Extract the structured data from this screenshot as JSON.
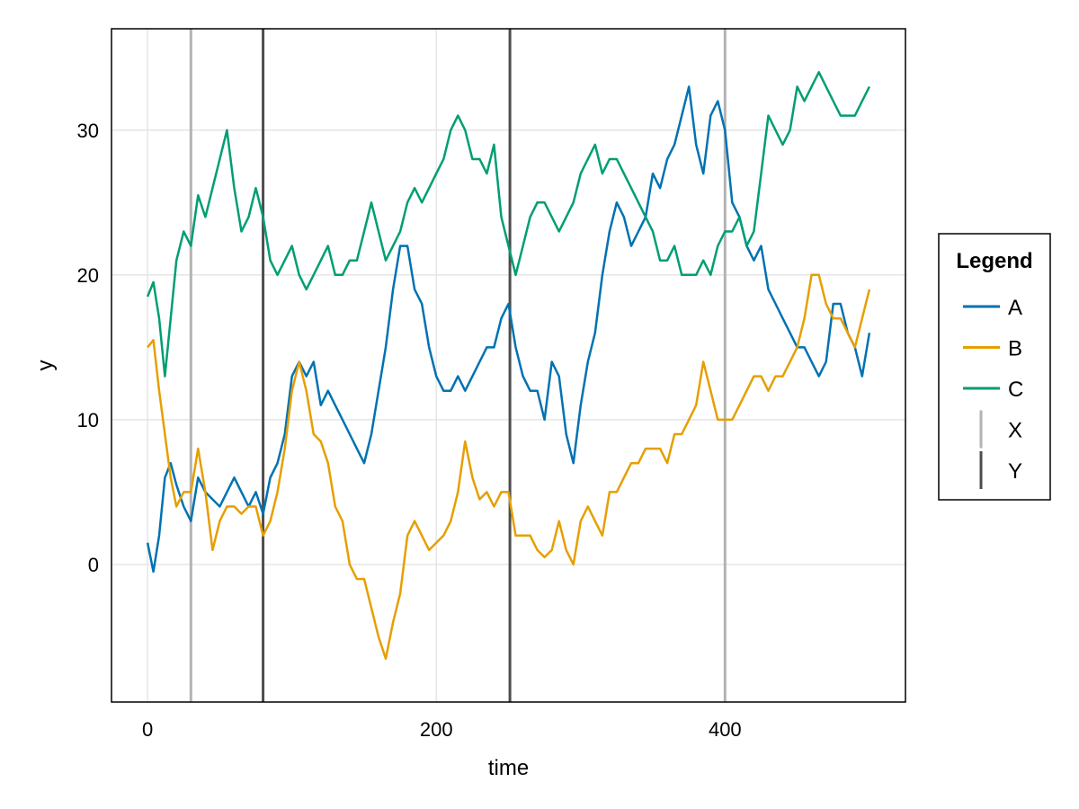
{
  "chart_data": {
    "type": "line",
    "title": "",
    "xlabel": "time",
    "ylabel": "y",
    "xlim": [
      -25,
      525
    ],
    "ylim": [
      -9.5,
      37
    ],
    "xticks": [
      0,
      200,
      400
    ],
    "yticks": [
      0,
      10,
      20,
      30
    ],
    "grid": true,
    "legend": {
      "title": "Legend",
      "placement": "right-outside",
      "entries": [
        {
          "label": "A",
          "kind": "line",
          "color": "#0072b2"
        },
        {
          "label": "B",
          "kind": "line",
          "color": "#e69f00"
        },
        {
          "label": "C",
          "kind": "line",
          "color": "#009e73"
        },
        {
          "label": "X",
          "kind": "vline",
          "color": "#b3b3b3"
        },
        {
          "label": "Y",
          "kind": "vline",
          "color": "#4d4d4d"
        }
      ]
    },
    "vlines": [
      {
        "name": "X",
        "x": [
          30,
          400
        ],
        "color": "#b3b3b3"
      },
      {
        "name": "Y",
        "x": [
          80,
          251
        ],
        "color": "#4d4d4d"
      }
    ],
    "series": [
      {
        "name": "A",
        "color": "#0072b2",
        "x": [
          0,
          4,
          8,
          12,
          16,
          20,
          25,
          30,
          35,
          40,
          45,
          50,
          55,
          60,
          65,
          70,
          75,
          80,
          85,
          90,
          95,
          100,
          105,
          110,
          115,
          120,
          125,
          130,
          135,
          140,
          145,
          150,
          155,
          160,
          165,
          170,
          175,
          180,
          185,
          190,
          195,
          200,
          205,
          210,
          215,
          220,
          225,
          230,
          235,
          240,
          245,
          250,
          255,
          260,
          265,
          270,
          275,
          280,
          285,
          290,
          295,
          300,
          305,
          310,
          315,
          320,
          325,
          330,
          335,
          340,
          345,
          350,
          355,
          360,
          365,
          370,
          375,
          380,
          385,
          390,
          395,
          400,
          405,
          410,
          415,
          420,
          425,
          430,
          435,
          440,
          445,
          450,
          455,
          460,
          465,
          470,
          475,
          480,
          485,
          490,
          495,
          500
        ],
        "y": [
          1.5,
          -0.5,
          2,
          6,
          7,
          5.5,
          4,
          3,
          6,
          5,
          4.5,
          4,
          5,
          6,
          5,
          4,
          5,
          3.5,
          6,
          7,
          9,
          13,
          14,
          13,
          14,
          11,
          12,
          11,
          10,
          9,
          8,
          7,
          9,
          12,
          15,
          19,
          22,
          22,
          19,
          18,
          15,
          13,
          12,
          12,
          13,
          12,
          13,
          14,
          15,
          15,
          17,
          18,
          15,
          13,
          12,
          12,
          10,
          14,
          13,
          9,
          7,
          11,
          14,
          16,
          20,
          23,
          25,
          24,
          22,
          23,
          24,
          27,
          26,
          28,
          29,
          31,
          33,
          29,
          27,
          31,
          32,
          30,
          25,
          24,
          22,
          21,
          22,
          19,
          18,
          17,
          16,
          15,
          15,
          14,
          13,
          14,
          18,
          18,
          16,
          15,
          13,
          16
        ]
      },
      {
        "name": "B",
        "color": "#e69f00",
        "x": [
          0,
          4,
          8,
          12,
          16,
          20,
          25,
          30,
          35,
          40,
          45,
          50,
          55,
          60,
          65,
          70,
          75,
          80,
          85,
          90,
          95,
          100,
          105,
          110,
          115,
          120,
          125,
          130,
          135,
          140,
          145,
          150,
          155,
          160,
          165,
          170,
          175,
          180,
          185,
          190,
          195,
          200,
          205,
          210,
          215,
          220,
          225,
          230,
          235,
          240,
          245,
          250,
          255,
          260,
          265,
          270,
          275,
          280,
          285,
          290,
          295,
          300,
          305,
          310,
          315,
          320,
          325,
          330,
          335,
          340,
          345,
          350,
          355,
          360,
          365,
          370,
          375,
          380,
          385,
          390,
          395,
          400,
          405,
          410,
          415,
          420,
          425,
          430,
          435,
          440,
          445,
          450,
          455,
          460,
          465,
          470,
          475,
          480,
          485,
          490,
          495,
          500
        ],
        "y": [
          15,
          15.5,
          12,
          9,
          6,
          4,
          5,
          5,
          8,
          5,
          1,
          3,
          4,
          4,
          3.5,
          4,
          4,
          2,
          3,
          5,
          8,
          12,
          14,
          12,
          9,
          8.5,
          7,
          4,
          3,
          0,
          -1,
          -1,
          -3,
          -5,
          -6.5,
          -4,
          -2,
          2,
          3,
          2,
          1,
          1.5,
          2,
          3,
          5,
          8.5,
          6,
          4.5,
          5,
          4,
          5,
          5,
          2,
          2,
          2,
          1,
          0.5,
          1,
          3,
          1,
          0,
          3,
          4,
          3,
          2,
          5,
          5,
          6,
          7,
          7,
          8,
          8,
          8,
          7,
          9,
          9,
          10,
          11,
          14,
          12,
          10,
          10,
          10,
          11,
          12,
          13,
          13,
          12,
          13,
          13,
          14,
          15,
          17,
          20,
          20,
          18,
          17,
          17,
          16,
          15,
          17,
          19
        ]
      },
      {
        "name": "C",
        "color": "#009e73",
        "x": [
          0,
          4,
          8,
          12,
          16,
          20,
          25,
          30,
          35,
          40,
          45,
          50,
          55,
          60,
          65,
          70,
          75,
          80,
          85,
          90,
          95,
          100,
          105,
          110,
          115,
          120,
          125,
          130,
          135,
          140,
          145,
          150,
          155,
          160,
          165,
          170,
          175,
          180,
          185,
          190,
          195,
          200,
          205,
          210,
          215,
          220,
          225,
          230,
          235,
          240,
          245,
          250,
          255,
          260,
          265,
          270,
          275,
          280,
          285,
          290,
          295,
          300,
          305,
          310,
          315,
          320,
          325,
          330,
          335,
          340,
          345,
          350,
          355,
          360,
          365,
          370,
          375,
          380,
          385,
          390,
          395,
          400,
          405,
          410,
          415,
          420,
          425,
          430,
          435,
          440,
          445,
          450,
          455,
          460,
          465,
          470,
          475,
          480,
          485,
          490,
          495,
          500
        ],
        "y": [
          18.5,
          19.5,
          17,
          13,
          17,
          21,
          23,
          22,
          25.5,
          24,
          26,
          28,
          30,
          26,
          23,
          24,
          26,
          24,
          21,
          20,
          21,
          22,
          20,
          19,
          20,
          21,
          22,
          20,
          20,
          21,
          21,
          23,
          25,
          23,
          21,
          22,
          23,
          25,
          26,
          25,
          26,
          27,
          28,
          30,
          31,
          30,
          28,
          28,
          27,
          29,
          24,
          22,
          20,
          22,
          24,
          25,
          25,
          24,
          23,
          24,
          25,
          27,
          28,
          29,
          27,
          28,
          28,
          27,
          26,
          25,
          24,
          23,
          21,
          21,
          22,
          20,
          20,
          20,
          21,
          20,
          22,
          23,
          23,
          24,
          22,
          23,
          27,
          31,
          30,
          29,
          30,
          33,
          32,
          33,
          34,
          33,
          32,
          31,
          31,
          31,
          32,
          33
        ]
      }
    ]
  }
}
